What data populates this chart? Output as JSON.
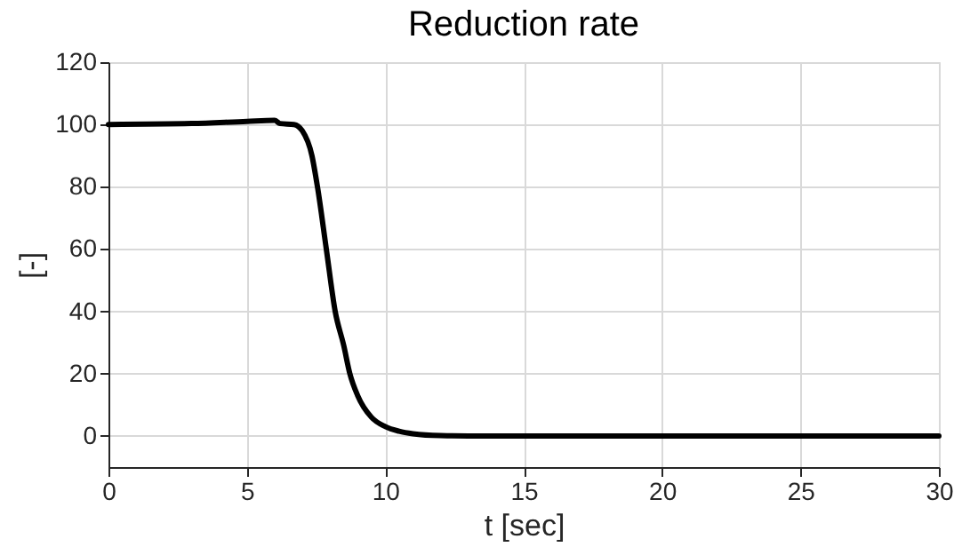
{
  "chart_data": {
    "type": "line",
    "title": "Reduction rate",
    "xlabel": "t [sec]",
    "ylabel": "[-]",
    "x": [
      0,
      3,
      5,
      6,
      6.2,
      6.7,
      7.0,
      7.35,
      7.55,
      7.87,
      8.19,
      8.5,
      8.72,
      9.0,
      9.5,
      10,
      10.5,
      11,
      12,
      13,
      30
    ],
    "series": [
      {
        "color": "#000000",
        "values": [
          100,
          100.3,
          101,
          101.3,
          100.3,
          100,
          98,
          90,
          80,
          60,
          40,
          29,
          20,
          13,
          6,
          3,
          1.5,
          0.7,
          0.1,
          0,
          0
        ]
      }
    ],
    "xlim": [
      0,
      30
    ],
    "xticks": [
      0,
      5,
      10,
      15,
      20,
      25,
      30
    ],
    "ylim": [
      -10,
      120
    ],
    "yticks": [
      0,
      20,
      40,
      60,
      80,
      100,
      120
    ],
    "grid": true,
    "marker": "none",
    "line_style": "solid"
  }
}
